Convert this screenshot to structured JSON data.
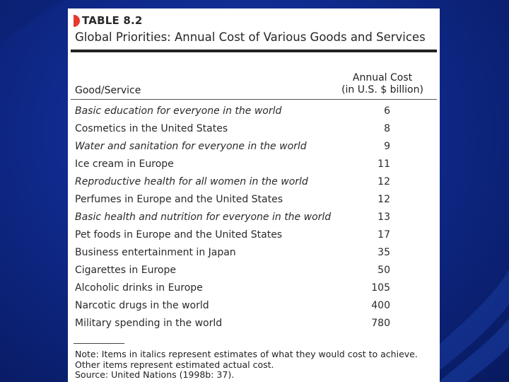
{
  "table": {
    "label": "TABLE 8.2",
    "title": "Global Priorities: Annual Cost of Various Goods and Services",
    "columns": {
      "good": "Good/Service",
      "cost_line1": "Annual Cost",
      "cost_line2": "(in U.S. $ billion)"
    },
    "rows": [
      {
        "name": "Basic education for everyone in the world",
        "cost": "6",
        "italic": true
      },
      {
        "name": "Cosmetics in the United States",
        "cost": "8",
        "italic": false
      },
      {
        "name": "Water and sanitation for everyone in the world",
        "cost": "9",
        "italic": true
      },
      {
        "name": "Ice cream in Europe",
        "cost": "11",
        "italic": false
      },
      {
        "name": "Reproductive health for all women in the world",
        "cost": "12",
        "italic": true
      },
      {
        "name": "Perfumes in Europe and the United States",
        "cost": "12",
        "italic": false
      },
      {
        "name": "Basic health and nutrition for everyone in the world",
        "cost": "13",
        "italic": true
      },
      {
        "name": "Pet foods in Europe and the United States",
        "cost": "17",
        "italic": false
      },
      {
        "name": "Business entertainment in Japan",
        "cost": "35",
        "italic": false
      },
      {
        "name": "Cigarettes in Europe",
        "cost": "50",
        "italic": false
      },
      {
        "name": "Alcoholic drinks in Europe",
        "cost": "105",
        "italic": false
      },
      {
        "name": "Narcotic drugs in the world",
        "cost": "400",
        "italic": false
      },
      {
        "name": "Military spending in the world",
        "cost": "780",
        "italic": false
      }
    ],
    "note_line1": "Note: Items in italics represent estimates of what they would cost to achieve.",
    "note_line2": "Other items represent estimated actual cost.",
    "source": "Source: United Nations (1998b: 37)."
  },
  "colors": {
    "background": "#0f2a8c",
    "marker": "#e63a2e"
  }
}
